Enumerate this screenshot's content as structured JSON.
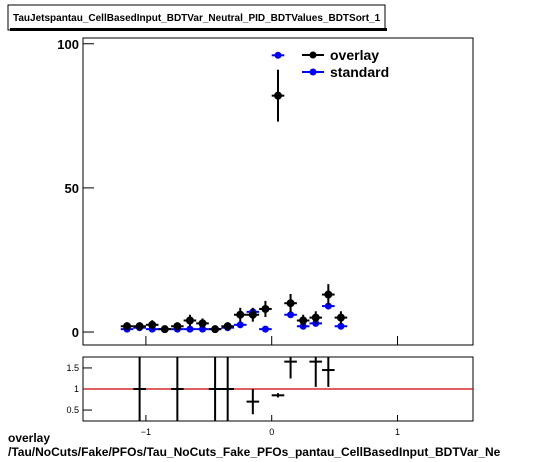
{
  "chart_data": {
    "type": "scatter",
    "title": "TauJetspantau_CellBasedInput_BDTVar_Neutral_PID_BDTValues_BDTSort_1",
    "xlabel": "overlay",
    "xlabel2": "/Tau/NoCuts/Fake/PFOs/Tau_NoCuts_Fake_PFOs_pantau_CellBasedInput_BDTVar_Ne",
    "bin_width": 0.1,
    "x": [
      -1.15,
      -1.05,
      -0.95,
      -0.85,
      -0.75,
      -0.65,
      -0.55,
      -0.45,
      -0.35,
      -0.25,
      -0.15,
      -0.05,
      0.05,
      0.15,
      0.25,
      0.35,
      0.45,
      0.55
    ],
    "series": [
      {
        "name": "overlay",
        "color": "#000000",
        "values": [
          2,
          2,
          2.5,
          1,
          2,
          4,
          3,
          1,
          2,
          6,
          6,
          8,
          82,
          10,
          4,
          5,
          13,
          5
        ],
        "errors": [
          1.4,
          1.4,
          1.6,
          1,
          1.4,
          2,
          1.7,
          1,
          1.4,
          2.4,
          2.4,
          2.8,
          9,
          3.2,
          2,
          2.2,
          3.6,
          2.2
        ]
      },
      {
        "name": "standard",
        "color": "#0000ff",
        "values": [
          1,
          1.5,
          1,
          1,
          1,
          1,
          1,
          1,
          1.5,
          2.5,
          7,
          1,
          96,
          6,
          2,
          3,
          9,
          2
        ]
      }
    ],
    "xlim": [
      -1.5,
      1.6
    ],
    "xticks": [
      {
        "value": -1,
        "label": "−1"
      },
      0,
      1
    ],
    "ylim": [
      -4.5,
      102
    ],
    "yticks": [
      0,
      50,
      100
    ],
    "legend": "upper right",
    "ratio": {
      "x": [
        -1.05,
        -0.75,
        -0.45,
        -0.35,
        -0.15,
        0.05,
        0.15,
        0.35,
        0.45
      ],
      "values": [
        1,
        1,
        1,
        1,
        0.7,
        0.85,
        1.65,
        1.65,
        1.45
      ],
      "errors": [
        1,
        1,
        1,
        1,
        0.3,
        0.05,
        0.4,
        0.6,
        0.4
      ],
      "reference": 1,
      "reference_color": "#cc0000",
      "ylim": [
        0.24,
        1.76
      ],
      "yticks": [
        0.5,
        1,
        1.5
      ]
    }
  }
}
